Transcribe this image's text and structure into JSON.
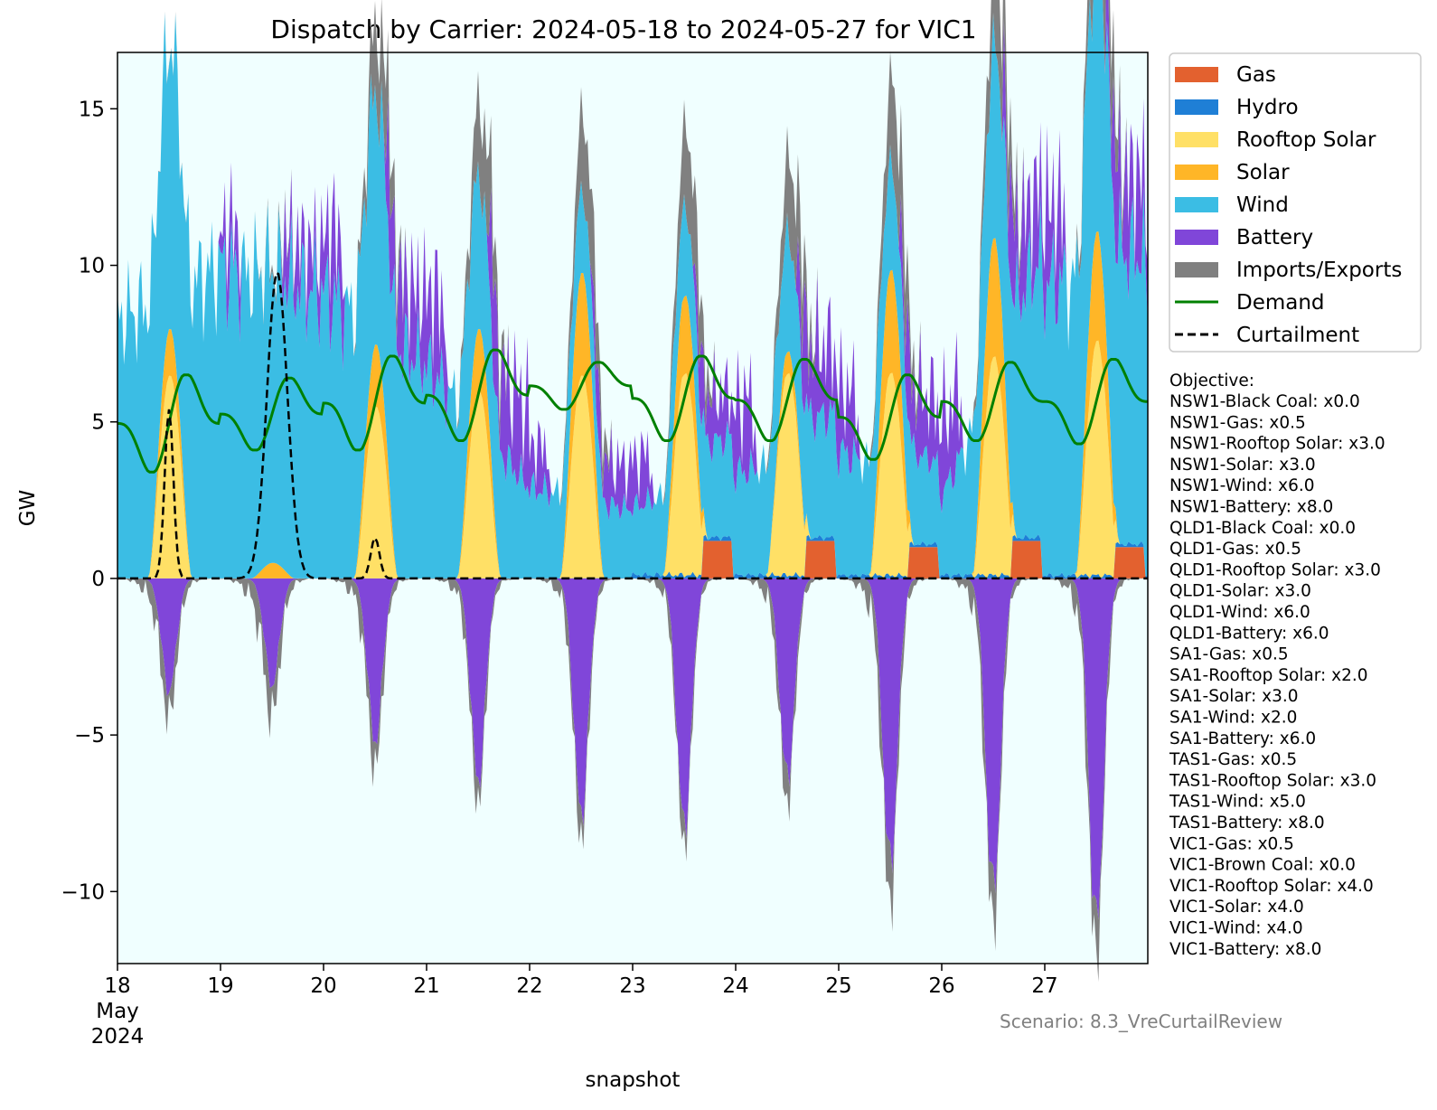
{
  "chart_data": {
    "type": "area",
    "title": "Dispatch by Carrier: 2024-05-18 to 2024-05-27 for VIC1",
    "xlabel": "snapshot",
    "ylabel": "GW",
    "xlim": [
      "2024-05-18",
      "2024-05-28"
    ],
    "ylim": [
      -12.3,
      16.8
    ],
    "yticks": [
      -10,
      -5,
      0,
      5,
      10,
      15
    ],
    "ytick_labels": [
      "−10",
      "−5",
      "0",
      "5",
      "10",
      "15"
    ],
    "xticks": [
      {
        "day": 0,
        "label": "18",
        "label2": "May",
        "label3": "2024"
      },
      {
        "day": 1,
        "label": "19"
      },
      {
        "day": 2,
        "label": "20"
      },
      {
        "day": 3,
        "label": "21"
      },
      {
        "day": 4,
        "label": "22"
      },
      {
        "day": 5,
        "label": "23"
      },
      {
        "day": 6,
        "label": "24"
      },
      {
        "day": 7,
        "label": "25"
      },
      {
        "day": 8,
        "label": "26"
      },
      {
        "day": 9,
        "label": "27"
      }
    ],
    "background": "#f0ffff",
    "legend_position": "outside-right-top",
    "series": [
      {
        "name": "Gas",
        "color": "#e3612f",
        "kind": "area",
        "daily_peak_gw": [
          0,
          0,
          0,
          0,
          0,
          1.2,
          1.2,
          1.0,
          1.2,
          1.0
        ]
      },
      {
        "name": "Hydro",
        "color": "#1f7fd6",
        "kind": "area",
        "daily_peak_gw": [
          0,
          0,
          0,
          0,
          0.1,
          1.5,
          1.4,
          1.3,
          1.4,
          1.3
        ]
      },
      {
        "name": "Rooftop Solar",
        "color": "#ffe066",
        "kind": "area",
        "daily_peak_gw": [
          6.5,
          0,
          5.5,
          6.0,
          6.5,
          6.5,
          6.5,
          6.5,
          7.0,
          7.5
        ]
      },
      {
        "name": "Solar",
        "color": "#ffb627",
        "kind": "area",
        "daily_peak_gw": [
          8.0,
          0.5,
          7.5,
          8.0,
          9.8,
          9.0,
          7.2,
          9.8,
          10.8,
          11.0
        ]
      },
      {
        "name": "Wind",
        "color": "#3bbde4",
        "kind": "area",
        "daily_peak_gw": [
          11.4,
          13.7,
          12.6,
          9.4,
          4.0,
          3.0,
          4.5,
          5.5,
          3.5,
          12.9
        ]
      },
      {
        "name": "Battery",
        "color": "#8046d9",
        "kind": "area",
        "daily_peak_gw": [
          0,
          5.0,
          8.0,
          9.4,
          5.0,
          5.5,
          8.3,
          7.5,
          8.5,
          9.0
        ],
        "daily_min_gw": [
          -4.0,
          -3.8,
          -5.8,
          -7.2,
          -8.4,
          -8.8,
          -7.1,
          -10.2,
          -11.1,
          -12.3
        ]
      },
      {
        "name": "Imports/Exports",
        "color": "#808080",
        "kind": "area",
        "daily_peak_gw": [
          0.2,
          1.0,
          12.4,
          13.0,
          13.4,
          13.7,
          13.0,
          14.7,
          14.8,
          16.7
        ],
        "daily_min_gw": [
          -7.2,
          -8.6,
          -7.3,
          -6.0,
          -6.5,
          -5.5,
          -7.1,
          -10.5,
          -9.5,
          -9.8
        ]
      },
      {
        "name": "Demand",
        "color": "#008000",
        "kind": "line",
        "daily_peak_gw": [
          6.5,
          6.4,
          7.1,
          7.3,
          6.9,
          7.1,
          7.0,
          6.5,
          6.9,
          7.0
        ],
        "daily_min_gw": [
          3.4,
          4.1,
          4.1,
          4.4,
          5.4,
          4.4,
          4.4,
          3.8,
          4.4,
          4.3
        ]
      },
      {
        "name": "Curtailment",
        "color": "#000000",
        "kind": "dashed-line",
        "daily_peak_gw": [
          5.4,
          9.8,
          1.3,
          0,
          0,
          0,
          0,
          0,
          0,
          0
        ]
      }
    ]
  },
  "objective": {
    "heading": "Objective:",
    "lines": [
      "NSW1-Black Coal: x0.0",
      "NSW1-Gas: x0.5",
      "NSW1-Rooftop Solar: x3.0",
      "NSW1-Solar: x3.0",
      "NSW1-Wind: x6.0",
      "NSW1-Battery: x8.0",
      "QLD1-Black Coal: x0.0",
      "QLD1-Gas: x0.5",
      "QLD1-Rooftop Solar: x3.0",
      "QLD1-Solar: x3.0",
      "QLD1-Wind: x6.0",
      "QLD1-Battery: x6.0",
      "SA1-Gas: x0.5",
      "SA1-Rooftop Solar: x2.0",
      "SA1-Solar: x3.0",
      "SA1-Wind: x2.0",
      "SA1-Battery: x6.0",
      "TAS1-Gas: x0.5",
      "TAS1-Rooftop Solar: x3.0",
      "TAS1-Wind: x5.0",
      "TAS1-Battery: x8.0",
      "VIC1-Gas: x0.5",
      "VIC1-Brown Coal: x0.0",
      "VIC1-Rooftop Solar: x4.0",
      "VIC1-Solar: x4.0",
      "VIC1-Wind: x4.0",
      "VIC1-Battery: x8.0"
    ]
  },
  "scenario": "Scenario: 8.3_VreCurtailReview"
}
